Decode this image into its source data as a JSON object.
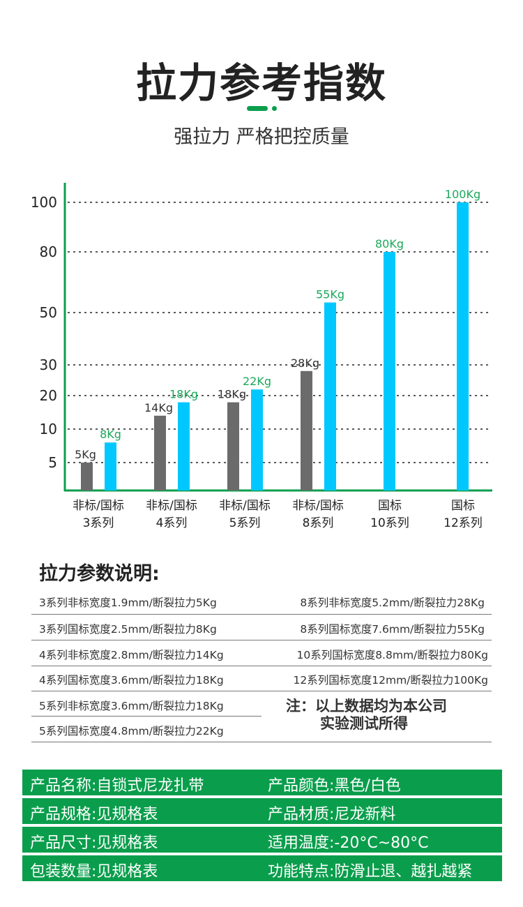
{
  "header": {
    "title": "拉力参考指数",
    "subtitle": "强拉力 严格把控质量"
  },
  "colors": {
    "non_standard": "#6b6b6b",
    "standard": "#00c8ff",
    "accent": "#0a9e4c",
    "standard_label": "#1aa85a"
  },
  "chart_data": {
    "type": "bar",
    "categories": [
      "非标/国标\n3系列",
      "非标/国标\n4系列",
      "非标/国标\n5系列",
      "非标/国标\n8系列",
      "国标\n10系列",
      "国标\n12系列"
    ],
    "category_lines": [
      [
        "非标/国标",
        "3系列"
      ],
      [
        "非标/国标",
        "4系列"
      ],
      [
        "非标/国标",
        "5系列"
      ],
      [
        "非标/国标",
        "8系列"
      ],
      [
        "国标",
        "10系列"
      ],
      [
        "国标",
        "12系列"
      ]
    ],
    "yticks": [
      5,
      10,
      20,
      30,
      50,
      80,
      100
    ],
    "ylim": [
      0,
      100
    ],
    "grid": true,
    "series": [
      {
        "values": [
          5,
          14,
          18,
          28,
          null,
          null
        ],
        "labels": [
          "5Kg",
          "14Kg",
          "18Kg",
          "28Kg",
          "",
          ""
        ]
      },
      {
        "values": [
          8,
          18,
          22,
          55,
          80,
          100
        ],
        "labels": [
          "8Kg",
          "18Kg",
          "22Kg",
          "55Kg",
          "80Kg",
          "100Kg"
        ]
      }
    ]
  },
  "params": {
    "title": "拉力参数说明:",
    "left": [
      "3系列非标宽度1.9mm/断裂拉力5Kg",
      "3系列国标宽度2.5mm/断裂拉力8Kg",
      "4系列非标宽度2.8mm/断裂拉力14Kg",
      "4系列国标宽度3.6mm/断裂拉力18Kg",
      "5系列非标宽度3.6mm/断裂拉力18Kg",
      "5系列国标宽度4.8mm/断裂拉力22Kg"
    ],
    "right": [
      "8系列非标宽度5.2mm/断裂拉力28Kg",
      "8系列国标宽度7.6mm/断裂拉力55Kg",
      "10系列国标宽度8.8mm/断裂拉力80Kg",
      "12系列国标宽度12mm/断裂拉力100Kg"
    ],
    "note_line1": "注：以上数据均为本公司",
    "note_line2": "实验测试所得"
  },
  "specs": [
    [
      "产品名称:自锁式尼龙扎带",
      "产品颜色:黑色/白色"
    ],
    [
      "产品规格:见规格表",
      "产品材质:尼龙新料"
    ],
    [
      "产品尺寸:见规格表",
      "适用温度:-20°C~80°C"
    ],
    [
      "包装数量:见规格表",
      "功能特点:防滑止退、越扎越紧"
    ]
  ]
}
